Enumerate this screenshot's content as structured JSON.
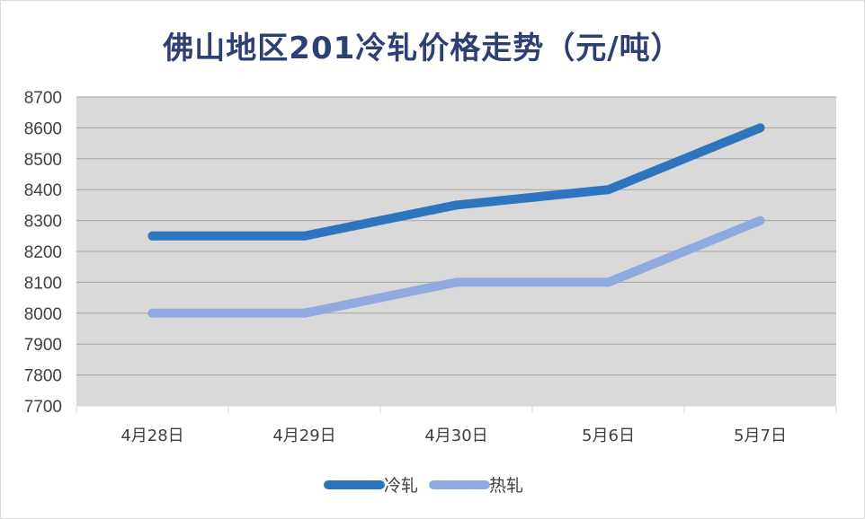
{
  "title": "佛山地区201冷轧价格走势（元/吨）",
  "chart_data": {
    "type": "line",
    "title": "佛山地区201冷轧价格走势（元/吨）",
    "categories": [
      "4月28日",
      "4月29日",
      "4月30日",
      "5月6日",
      "5月7日"
    ],
    "series": [
      {
        "name": "冷轧",
        "values": [
          8250,
          8250,
          8350,
          8400,
          8600
        ],
        "color": "#2e75c0"
      },
      {
        "name": "热轧",
        "values": [
          8000,
          8000,
          8100,
          8100,
          8300
        ],
        "color": "#8faadf"
      }
    ],
    "xlabel": "",
    "ylabel": "",
    "ylim": [
      7700,
      8700
    ],
    "yticks": [
      7700,
      7800,
      7900,
      8000,
      8100,
      8200,
      8300,
      8400,
      8500,
      8600,
      8700
    ],
    "grid": true,
    "plot_background": "#d9d9d9",
    "gridline_color": "#a6a6a6",
    "legend_position": "bottom"
  }
}
